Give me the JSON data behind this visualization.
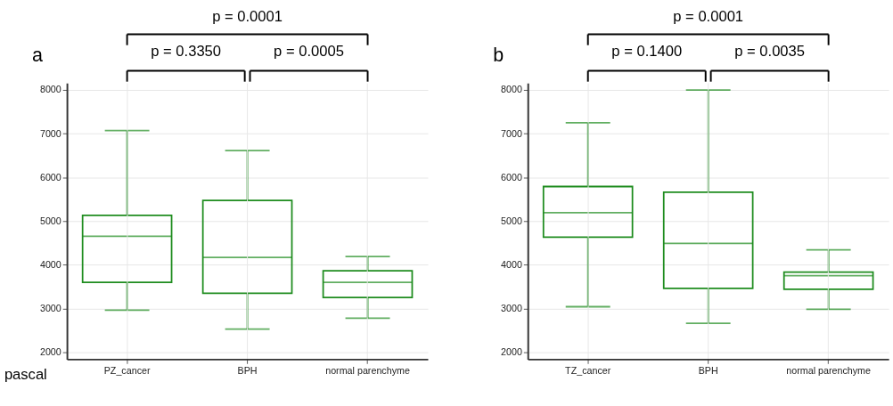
{
  "chart_data": [
    {
      "type": "box",
      "title": "a",
      "categories": [
        "PZ_cancer",
        "BPH",
        "normal parenchyme"
      ],
      "color": "#1e8c1e",
      "boxes": [
        {
          "low": 2960,
          "q1": 3600,
          "median": 4650,
          "q3": 5130,
          "high": 7070
        },
        {
          "low": 2530,
          "q1": 3350,
          "median": 4170,
          "q3": 5470,
          "high": 6610
        },
        {
          "low": 2780,
          "q1": 3250,
          "median": 3600,
          "q3": 3860,
          "high": 4190
        }
      ],
      "ylim": [
        1840,
        8160
      ],
      "yticks": [
        2000,
        3000,
        4000,
        5000,
        6000,
        7000,
        8000
      ],
      "grid": true,
      "annotations": [
        "p = 0.0001",
        "p = 0.3350",
        "p = 0.0005",
        "pascal"
      ]
    },
    {
      "type": "box",
      "title": "b",
      "categories": [
        "TZ_cancer",
        "BPH",
        "normal parenchyme"
      ],
      "color": "#1e8c1e",
      "boxes": [
        {
          "low": 3040,
          "q1": 4630,
          "median": 5190,
          "q3": 5790,
          "high": 7250
        },
        {
          "low": 2660,
          "q1": 3460,
          "median": 4490,
          "q3": 5660,
          "high": 8000
        },
        {
          "low": 2980,
          "q1": 3440,
          "median": 3750,
          "q3": 3830,
          "high": 4340
        }
      ],
      "ylim": [
        1840,
        8160
      ],
      "yticks": [
        2000,
        3000,
        4000,
        5000,
        6000,
        7000,
        8000
      ],
      "grid": true,
      "annotations": [
        "p = 0.0001",
        "p = 0.1400",
        "p = 0.0035"
      ]
    }
  ]
}
